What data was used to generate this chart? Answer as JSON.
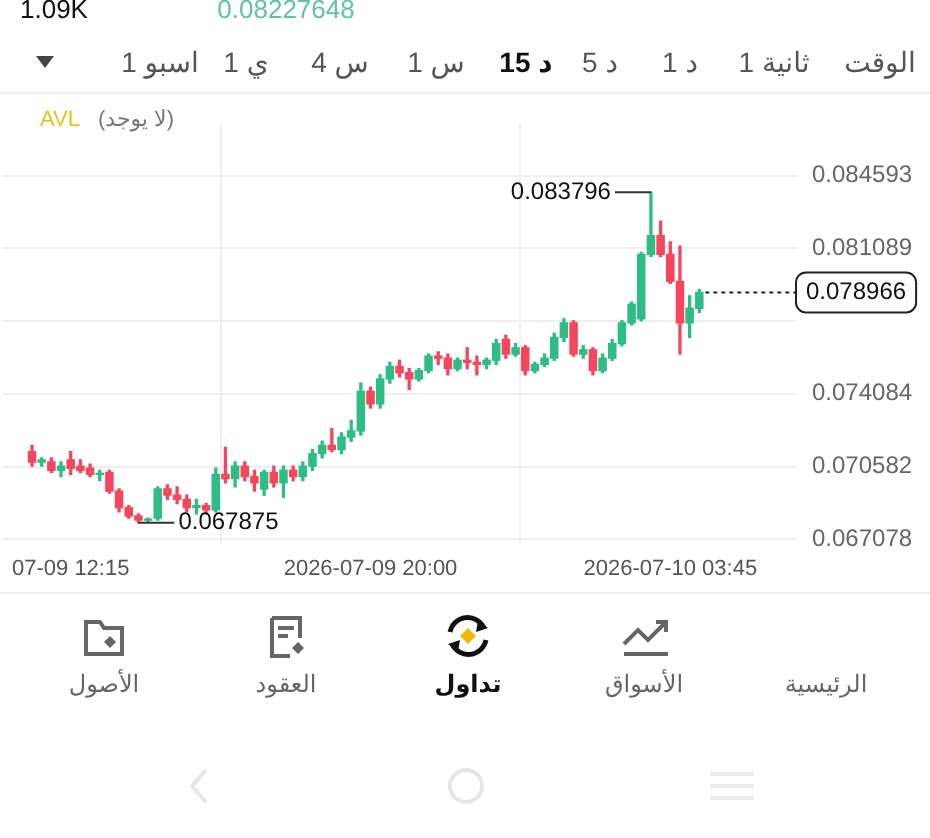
{
  "chart_data": {
    "type": "candlestick",
    "x": [
      "2026-07-09T11:15",
      "2026-07-09T11:30",
      "2026-07-09T11:45",
      "2026-07-09T12:00",
      "2026-07-09T12:15",
      "2026-07-09T12:30",
      "2026-07-09T12:45",
      "2026-07-09T13:00",
      "2026-07-09T13:15",
      "2026-07-09T13:30",
      "2026-07-09T13:45",
      "2026-07-09T14:00",
      "2026-07-09T14:15",
      "2026-07-09T14:30",
      "2026-07-09T14:45",
      "2026-07-09T15:00",
      "2026-07-09T15:15",
      "2026-07-09T15:30",
      "2026-07-09T15:45",
      "2026-07-09T16:00",
      "2026-07-09T16:15",
      "2026-07-09T16:30",
      "2026-07-09T16:45",
      "2026-07-09T17:00",
      "2026-07-09T17:15",
      "2026-07-09T17:30",
      "2026-07-09T17:45",
      "2026-07-09T18:00",
      "2026-07-09T18:15",
      "2026-07-09T18:30",
      "2026-07-09T18:45",
      "2026-07-09T19:00",
      "2026-07-09T19:15",
      "2026-07-09T19:30",
      "2026-07-09T19:45",
      "2026-07-09T20:00",
      "2026-07-09T20:15",
      "2026-07-09T20:30",
      "2026-07-09T20:45",
      "2026-07-09T21:00",
      "2026-07-09T21:15",
      "2026-07-09T21:30",
      "2026-07-09T21:45",
      "2026-07-09T22:00",
      "2026-07-09T22:15",
      "2026-07-09T22:30",
      "2026-07-09T22:45",
      "2026-07-09T23:00",
      "2026-07-09T23:15",
      "2026-07-09T23:30",
      "2026-07-09T23:45",
      "2026-07-10T00:00",
      "2026-07-10T00:15",
      "2026-07-10T00:30",
      "2026-07-10T00:45",
      "2026-07-10T01:00",
      "2026-07-10T01:15",
      "2026-07-10T01:30",
      "2026-07-10T01:45",
      "2026-07-10T02:00",
      "2026-07-10T02:15",
      "2026-07-10T02:30",
      "2026-07-10T02:45",
      "2026-07-10T03:00",
      "2026-07-10T03:15",
      "2026-07-10T03:30",
      "2026-07-10T03:45",
      "2026-07-10T04:00",
      "2026-07-10T04:15",
      "2026-07-10T04:30"
    ],
    "ohlc": [
      [
        0.0713,
        0.0716,
        0.0706,
        0.0708
      ],
      [
        0.0708,
        0.071,
        0.0706,
        0.0709
      ],
      [
        0.0708,
        0.071,
        0.0703,
        0.0704
      ],
      [
        0.0704,
        0.0708,
        0.0701,
        0.0706
      ],
      [
        0.0709,
        0.0713,
        0.0702,
        0.0705
      ],
      [
        0.0706,
        0.0709,
        0.0703,
        0.0704
      ],
      [
        0.0705,
        0.0707,
        0.0701,
        0.0702
      ],
      [
        0.0702,
        0.0704,
        0.0699,
        0.07025
      ],
      [
        0.0703,
        0.0704,
        0.0693,
        0.0694
      ],
      [
        0.0694,
        0.0695,
        0.0684,
        0.0686
      ],
      [
        0.0686,
        0.0687,
        0.0681,
        0.0682
      ],
      [
        0.0682,
        0.0683,
        0.067875,
        0.068
      ],
      [
        0.068,
        0.0681,
        0.0679,
        0.06805
      ],
      [
        0.0681,
        0.0696,
        0.068,
        0.0695
      ],
      [
        0.0695,
        0.0697,
        0.069,
        0.0692
      ],
      [
        0.0692,
        0.0696,
        0.0688,
        0.069
      ],
      [
        0.069,
        0.0692,
        0.0684,
        0.0686
      ],
      [
        0.0686,
        0.069,
        0.0683,
        0.0687
      ],
      [
        0.0687,
        0.0688,
        0.0683,
        0.0685
      ],
      [
        0.0685,
        0.0705,
        0.0684,
        0.0702
      ],
      [
        0.0702,
        0.0715,
        0.0698,
        0.07
      ],
      [
        0.07,
        0.0708,
        0.0696,
        0.0706
      ],
      [
        0.0706,
        0.0708,
        0.0699,
        0.0701
      ],
      [
        0.0701,
        0.0704,
        0.0694,
        0.0698
      ],
      [
        0.0695,
        0.0704,
        0.0692,
        0.0703
      ],
      [
        0.0703,
        0.0706,
        0.0696,
        0.0698
      ],
      [
        0.0698,
        0.0706,
        0.0691,
        0.0704
      ],
      [
        0.0704,
        0.0706,
        0.0699,
        0.0701
      ],
      [
        0.0701,
        0.0708,
        0.0699,
        0.0706
      ],
      [
        0.0706,
        0.0714,
        0.0704,
        0.0712
      ],
      [
        0.0712,
        0.0718,
        0.071,
        0.0716
      ],
      [
        0.0716,
        0.0724,
        0.0713,
        0.0714
      ],
      [
        0.0714,
        0.0722,
        0.0712,
        0.072
      ],
      [
        0.072,
        0.0728,
        0.0718,
        0.0723
      ],
      [
        0.0723,
        0.0746,
        0.0721,
        0.0742
      ],
      [
        0.0742,
        0.0744,
        0.0734,
        0.0736
      ],
      [
        0.0736,
        0.075,
        0.0734,
        0.0748
      ],
      [
        0.0748,
        0.0756,
        0.0746,
        0.0754
      ],
      [
        0.0754,
        0.0757,
        0.0749,
        0.0751
      ],
      [
        0.0751,
        0.0753,
        0.0743,
        0.0748
      ],
      [
        0.0748,
        0.0753,
        0.0747,
        0.0752
      ],
      [
        0.0752,
        0.076,
        0.0751,
        0.0759
      ],
      [
        0.0759,
        0.0761,
        0.0755,
        0.0758
      ],
      [
        0.0758,
        0.076,
        0.075,
        0.0753
      ],
      [
        0.0753,
        0.0758,
        0.0752,
        0.0757
      ],
      [
        0.0757,
        0.0763,
        0.0753,
        0.0756
      ],
      [
        0.0756,
        0.0759,
        0.075,
        0.0755
      ],
      [
        0.0755,
        0.0758,
        0.0753,
        0.0757
      ],
      [
        0.0757,
        0.0767,
        0.0755,
        0.0765
      ],
      [
        0.0767,
        0.0769,
        0.0758,
        0.076
      ],
      [
        0.076,
        0.0765,
        0.0759,
        0.0763
      ],
      [
        0.0763,
        0.0764,
        0.075,
        0.0752
      ],
      [
        0.0752,
        0.0756,
        0.0751,
        0.0755
      ],
      [
        0.0755,
        0.076,
        0.0754,
        0.0758
      ],
      [
        0.0758,
        0.077,
        0.0757,
        0.0768
      ],
      [
        0.0768,
        0.0777,
        0.0766,
        0.0775
      ],
      [
        0.0775,
        0.0776,
        0.0759,
        0.076
      ],
      [
        0.076,
        0.0764,
        0.0758,
        0.0762
      ],
      [
        0.0762,
        0.0763,
        0.075,
        0.0752
      ],
      [
        0.0752,
        0.076,
        0.0751,
        0.0758
      ],
      [
        0.0758,
        0.0767,
        0.0757,
        0.0765
      ],
      [
        0.0765,
        0.0776,
        0.0764,
        0.0775
      ],
      [
        0.0775,
        0.0785,
        0.0774,
        0.0784
      ],
      [
        0.0777,
        0.0809,
        0.0776,
        0.0808
      ],
      [
        0.0808,
        0.083796,
        0.0807,
        0.0817
      ],
      [
        0.0817,
        0.0824,
        0.0807,
        0.0808
      ],
      [
        0.0808,
        0.0814,
        0.0794,
        0.0795
      ],
      [
        0.0795,
        0.0812,
        0.076,
        0.0775
      ],
      [
        0.0775,
        0.0788,
        0.0768,
        0.0782
      ],
      [
        0.0782,
        0.0791,
        0.078,
        0.078966
      ]
    ],
    "xlim": [
      "2026-07-09T10:30",
      "2026-07-10T07:00"
    ],
    "xticks": [
      {
        "value": "2026-07-09T12:15",
        "label": "07-09 12:15"
      },
      {
        "value": "2026-07-09T20:00",
        "label": "2026-07-09 20:00"
      },
      {
        "value": "2026-07-10T03:45",
        "label": "2026-07-10 03:45"
      }
    ],
    "ylim": [
      0.06685,
      0.08706
    ],
    "yticks": [
      0.084593,
      0.081089,
      {
        "value": 0.077587,
        "label": null
      },
      0.074084,
      0.070582,
      0.067078
    ],
    "grid": true,
    "ref_lines": [
      {
        "axis": "y",
        "value": 0.078966,
        "label": "0.078966",
        "line_style": "dashed"
      }
    ],
    "annotations": [
      "1.09K",
      "0.08227648",
      "الوقت",
      "1 ثانية",
      "1 د",
      "5 د",
      "15 د",
      "1 س",
      "4 س",
      "1 ي",
      "1 اسبو",
      "AVL",
      "(لا يوجد)",
      {
        "text": "0.083796",
        "x": "2026-07-10T03:15",
        "y": 0.083796
      },
      {
        "text": "0.067875",
        "x": "2026-07-09T14:00",
        "y": 0.067875
      },
      "الأصول",
      "العقود",
      "تداول",
      "الأسواق",
      "الرئيسية"
    ]
  }
}
